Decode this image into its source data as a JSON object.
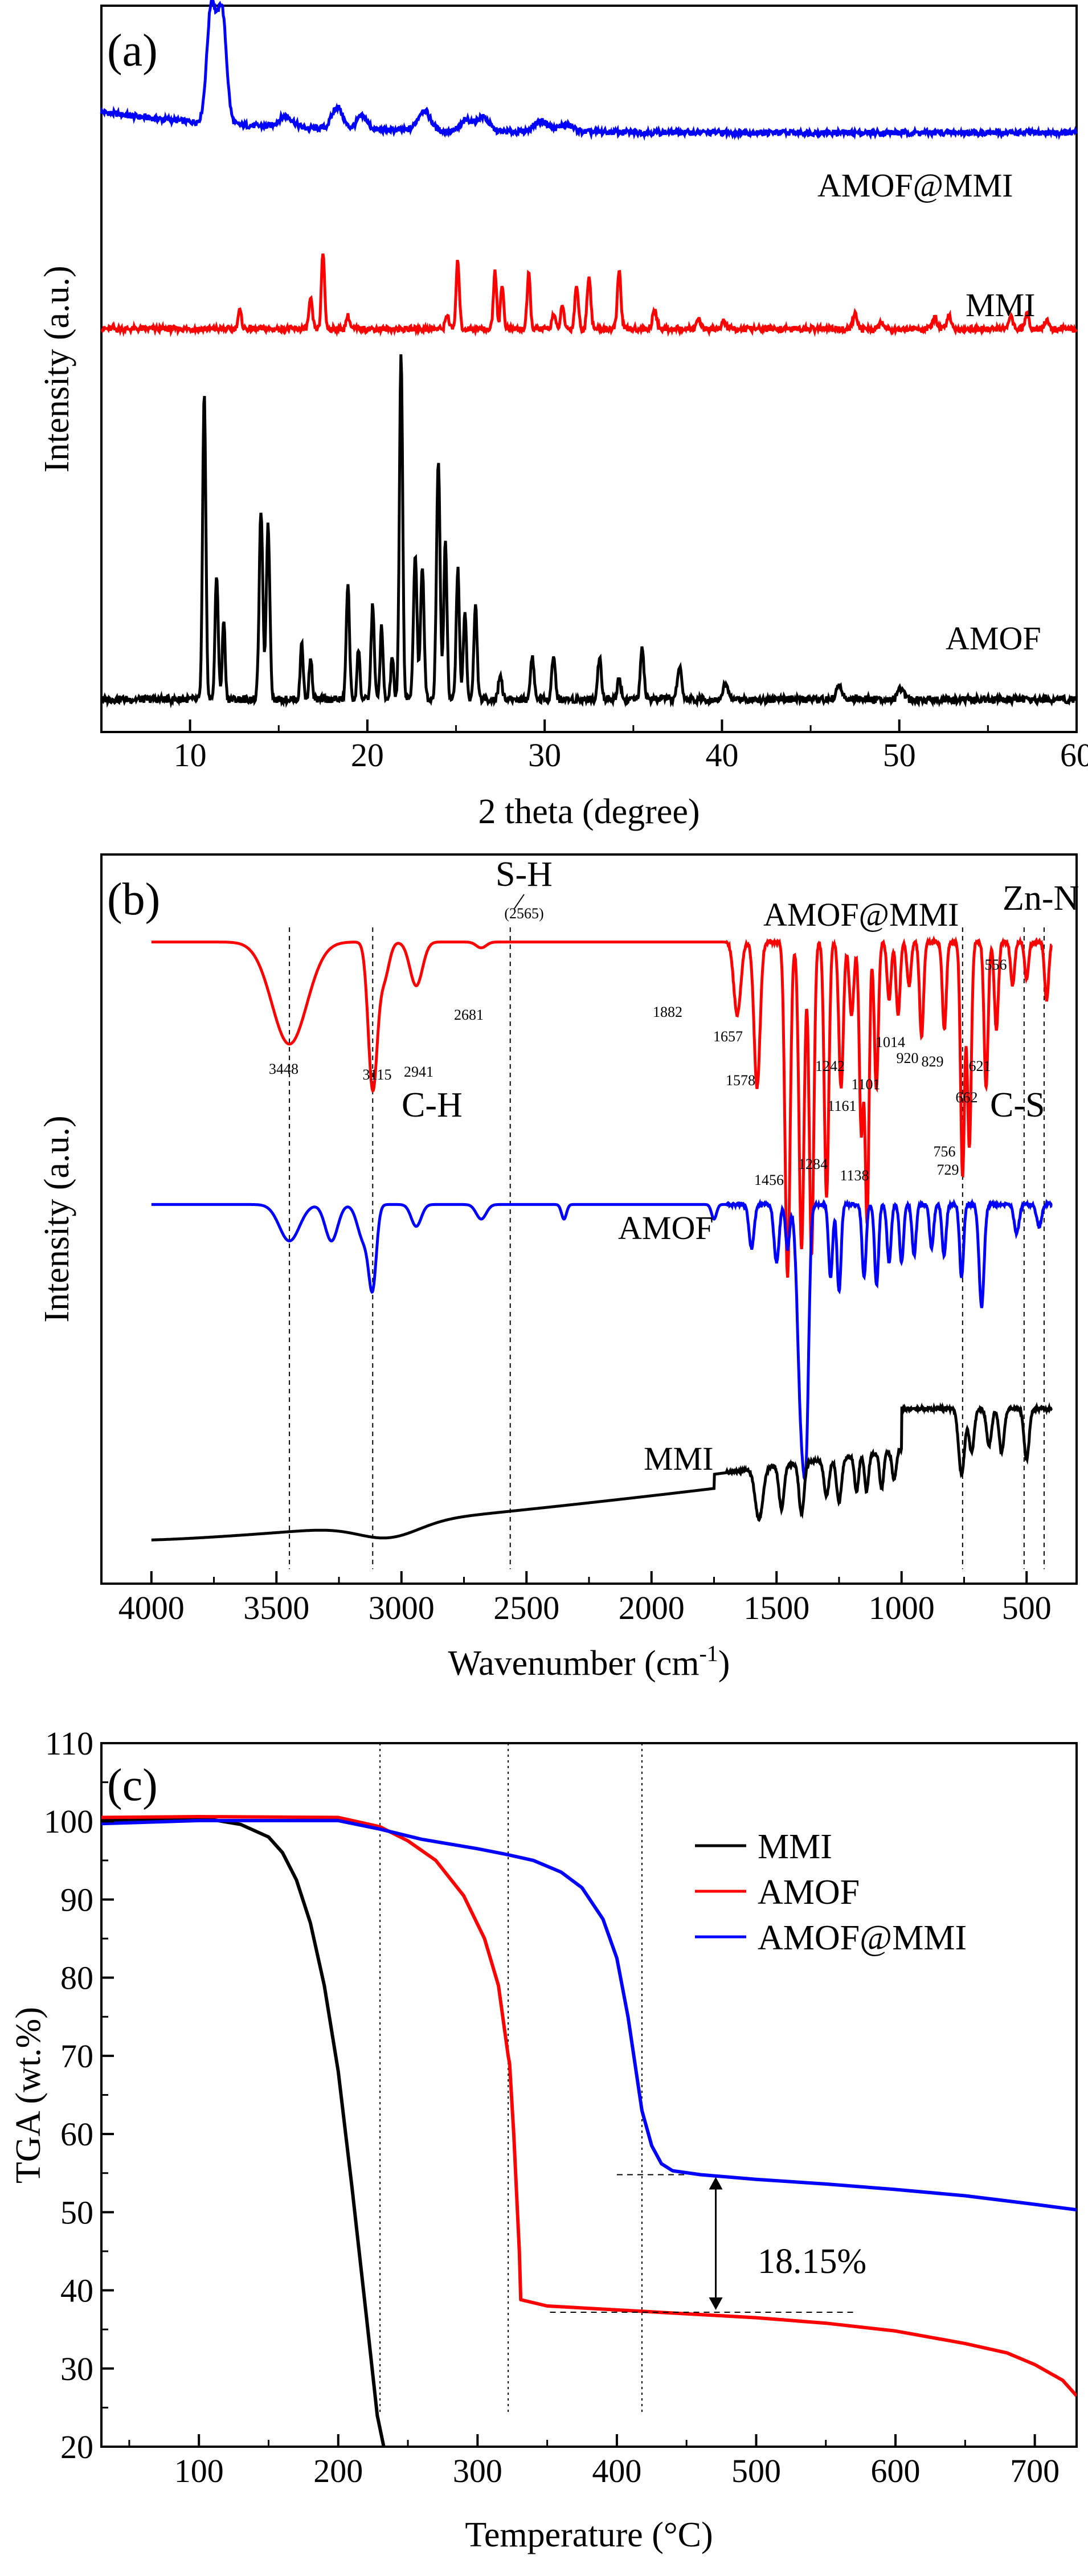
{
  "chart_data": [
    {
      "panel": "(a)",
      "type": "line",
      "xlabel": "2 theta (degree)",
      "ylabel": "Intensity (a.u.)",
      "xlim": [
        5,
        60
      ],
      "xticks": [
        10,
        20,
        30,
        40,
        50,
        60
      ],
      "colors": {
        "AMOF@MMI": "#0000ff",
        "MMI": "#ff0000",
        "AMOF": "#000000"
      },
      "series": [
        {
          "name": "AMOF@MMI",
          "baseline": 0.825,
          "noise": 0.004,
          "peaks": [
            [
              11.2,
              0.16,
              0.25
            ],
            [
              11.8,
              0.155,
              0.25
            ],
            [
              15.4,
              0.015,
              0.4
            ],
            [
              18.3,
              0.03,
              0.3
            ],
            [
              19.7,
              0.018,
              0.3
            ],
            [
              23.2,
              0.028,
              0.35
            ],
            [
              25.6,
              0.015,
              0.3
            ],
            [
              26.5,
              0.02,
              0.35
            ],
            [
              29.8,
              0.015,
              0.4
            ],
            [
              31.2,
              0.01,
              0.4
            ]
          ]
        },
        {
          "name": "MMI",
          "baseline": 0.555,
          "noise": 0.004,
          "peaks": [
            [
              12.8,
              0.025,
              0.1
            ],
            [
              16.8,
              0.04,
              0.1
            ],
            [
              17.5,
              0.105,
              0.09
            ],
            [
              18.9,
              0.018,
              0.1
            ],
            [
              24.5,
              0.02,
              0.1
            ],
            [
              25.1,
              0.095,
              0.09
            ],
            [
              27.2,
              0.08,
              0.09
            ],
            [
              27.6,
              0.06,
              0.09
            ],
            [
              29.1,
              0.075,
              0.09
            ],
            [
              30.5,
              0.02,
              0.1
            ],
            [
              31.0,
              0.03,
              0.1
            ],
            [
              31.8,
              0.06,
              0.1
            ],
            [
              32.5,
              0.075,
              0.1
            ],
            [
              34.2,
              0.08,
              0.1
            ],
            [
              36.2,
              0.025,
              0.12
            ],
            [
              38.7,
              0.012,
              0.12
            ],
            [
              40.1,
              0.01,
              0.12
            ],
            [
              47.5,
              0.02,
              0.12
            ],
            [
              49.0,
              0.01,
              0.12
            ],
            [
              52.0,
              0.015,
              0.12
            ],
            [
              52.8,
              0.02,
              0.12
            ],
            [
              56.3,
              0.015,
              0.12
            ],
            [
              57.2,
              0.02,
              0.12
            ],
            [
              58.3,
              0.012,
              0.12
            ]
          ]
        },
        {
          "name": "AMOF",
          "baseline": 0.045,
          "noise": 0.005,
          "peaks": [
            [
              10.8,
              0.42,
              0.09
            ],
            [
              11.5,
              0.17,
              0.09
            ],
            [
              11.9,
              0.11,
              0.08
            ],
            [
              14.0,
              0.26,
              0.1
            ],
            [
              14.4,
              0.24,
              0.1
            ],
            [
              16.3,
              0.08,
              0.08
            ],
            [
              16.8,
              0.06,
              0.08
            ],
            [
              18.9,
              0.16,
              0.09
            ],
            [
              19.5,
              0.07,
              0.08
            ],
            [
              20.3,
              0.13,
              0.09
            ],
            [
              20.8,
              0.1,
              0.08
            ],
            [
              21.4,
              0.06,
              0.08
            ],
            [
              21.9,
              0.48,
              0.09
            ],
            [
              22.7,
              0.2,
              0.1
            ],
            [
              23.1,
              0.18,
              0.1
            ],
            [
              24.0,
              0.33,
              0.1
            ],
            [
              24.4,
              0.22,
              0.09
            ],
            [
              25.1,
              0.18,
              0.09
            ],
            [
              25.5,
              0.12,
              0.09
            ],
            [
              26.1,
              0.13,
              0.09
            ],
            [
              27.5,
              0.035,
              0.1
            ],
            [
              29.3,
              0.06,
              0.1
            ],
            [
              30.5,
              0.06,
              0.1
            ],
            [
              33.1,
              0.06,
              0.1
            ],
            [
              34.2,
              0.03,
              0.1
            ],
            [
              35.5,
              0.07,
              0.1
            ],
            [
              37.6,
              0.045,
              0.12
            ],
            [
              40.2,
              0.02,
              0.15
            ],
            [
              46.6,
              0.02,
              0.15
            ],
            [
              50.1,
              0.015,
              0.15
            ]
          ]
        }
      ]
    },
    {
      "panel": "(b)",
      "type": "line",
      "xlabel": "Wavenumber (cm",
      "xlabel_sup": "-1",
      "xlabel_close": ")",
      "ylabel": "Intensity (a.u.)",
      "xlim": [
        4200,
        300
      ],
      "xticks": [
        4000,
        3500,
        3000,
        2500,
        2000,
        1500,
        1000,
        500
      ],
      "colors": {
        "AMOF@MMI": "#ff0000",
        "AMOF": "#0000ff",
        "MMI": "#000000"
      },
      "series": [
        {
          "name": "AMOF@MMI",
          "baseline": 0.88,
          "bands": [
            [
              3448,
              0.14,
              70
            ],
            [
              3115,
              0.2,
              18
            ],
            [
              3070,
              0.05,
              20
            ],
            [
              2941,
              0.06,
              25
            ],
            [
              2681,
              0.008,
              20
            ],
            [
              1657,
              0.1,
              14
            ],
            [
              1578,
              0.2,
              12
            ],
            [
              1456,
              0.46,
              10
            ],
            [
              1400,
              0.42,
              10
            ],
            [
              1360,
              0.43,
              9
            ],
            [
              1300,
              0.35,
              9
            ],
            [
              1242,
              0.2,
              9
            ],
            [
              1200,
              0.1,
              9
            ],
            [
              1161,
              0.26,
              8
            ],
            [
              1138,
              0.38,
              8
            ],
            [
              1101,
              0.2,
              8
            ],
            [
              1050,
              0.08,
              8
            ],
            [
              1014,
              0.1,
              8
            ],
            [
              970,
              0.06,
              8
            ],
            [
              920,
              0.13,
              8
            ],
            [
              829,
              0.12,
              8
            ],
            [
              756,
              0.32,
              8
            ],
            [
              729,
              0.28,
              8
            ],
            [
              662,
              0.2,
              8
            ],
            [
              621,
              0.12,
              8
            ],
            [
              556,
              0.06,
              8
            ],
            [
              500,
              0.05,
              8
            ],
            [
              420,
              0.08,
              8
            ]
          ]
        },
        {
          "name": "AMOF",
          "baseline": 0.52,
          "bands": [
            [
              3448,
              0.05,
              40
            ],
            [
              3280,
              0.05,
              25
            ],
            [
              3150,
              0.05,
              25
            ],
            [
              3115,
              0.1,
              15
            ],
            [
              2941,
              0.03,
              20
            ],
            [
              2681,
              0.02,
              20
            ],
            [
              2350,
              0.02,
              10
            ],
            [
              1750,
              0.02,
              10
            ],
            [
              1600,
              0.06,
              10
            ],
            [
              1500,
              0.08,
              10
            ],
            [
              1456,
              0.06,
              8
            ],
            [
              1400,
              0.3,
              15
            ],
            [
              1380,
              0.22,
              10
            ],
            [
              1284,
              0.1,
              8
            ],
            [
              1250,
              0.12,
              8
            ],
            [
              1150,
              0.1,
              8
            ],
            [
              1100,
              0.11,
              8
            ],
            [
              1050,
              0.08,
              8
            ],
            [
              1000,
              0.08,
              8
            ],
            [
              950,
              0.07,
              8
            ],
            [
              880,
              0.06,
              8
            ],
            [
              830,
              0.07,
              8
            ],
            [
              760,
              0.1,
              8
            ],
            [
              680,
              0.14,
              10
            ],
            [
              540,
              0.04,
              10
            ],
            [
              450,
              0.03,
              10
            ]
          ]
        },
        {
          "name": "MMI",
          "baseline": 0.06,
          "bands": [
            [
              3050,
              0.02,
              120
            ],
            [
              1570,
              0.07,
              15
            ],
            [
              1480,
              0.06,
              10
            ],
            [
              1400,
              0.07,
              10
            ],
            [
              1300,
              0.05,
              10
            ],
            [
              1250,
              0.06,
              10
            ],
            [
              1180,
              0.05,
              8
            ],
            [
              1140,
              0.05,
              8
            ],
            [
              1080,
              0.05,
              8
            ],
            [
              1030,
              0.04,
              8
            ],
            [
              760,
              0.09,
              12
            ],
            [
              720,
              0.06,
              10
            ],
            [
              650,
              0.05,
              10
            ],
            [
              600,
              0.06,
              10
            ],
            [
              500,
              0.07,
              10
            ]
          ]
        }
      ],
      "guides": [
        3448,
        3115,
        2565,
        756,
        510,
        430
      ],
      "peak_labels": [
        {
          "text": "3448"
        },
        {
          "text": "3115"
        },
        {
          "text": "2941"
        },
        {
          "text": "2681"
        },
        {
          "text": "(2565)"
        },
        {
          "text": "1882"
        },
        {
          "text": "1657"
        },
        {
          "text": "1578"
        },
        {
          "text": "1456"
        },
        {
          "text": "1284"
        },
        {
          "text": "1242"
        },
        {
          "text": "1161"
        },
        {
          "text": "1138"
        },
        {
          "text": "1101"
        },
        {
          "text": "1014"
        },
        {
          "text": "920"
        },
        {
          "text": "829"
        },
        {
          "text": "756"
        },
        {
          "text": "729"
        },
        {
          "text": "662"
        },
        {
          "text": "621"
        },
        {
          "text": "556"
        }
      ],
      "annotations": [
        "S-H",
        "C-H",
        "Zn-N",
        "C-S"
      ]
    },
    {
      "panel": "(c)",
      "type": "line",
      "xlabel": "Temperature (°C)",
      "ylabel": "TGA (wt.%)",
      "xlim": [
        30,
        730
      ],
      "ylim": [
        20,
        110
      ],
      "xticks": [
        100,
        200,
        300,
        400,
        500,
        600,
        700
      ],
      "yticks": [
        20,
        30,
        40,
        50,
        60,
        70,
        80,
        90,
        100,
        110
      ],
      "legend": "top-right",
      "guides": [
        230,
        322,
        418
      ],
      "step_annotation": "18.15%",
      "step_from": 37.2,
      "step_to": 54.8,
      "series": [
        {
          "name": "MMI",
          "color": "#000000",
          "x": [
            30,
            80,
            110,
            130,
            150,
            160,
            170,
            180,
            190,
            200,
            210,
            220,
            228,
            235
          ],
          "y": [
            100.1,
            100.3,
            100.2,
            99.6,
            98.0,
            96.0,
            92.5,
            87.0,
            79.0,
            68.0,
            53.0,
            37.0,
            24.0,
            18.0
          ]
        },
        {
          "name": "AMOF",
          "color": "#ff0000",
          "x": [
            30,
            100,
            200,
            230,
            250,
            270,
            290,
            305,
            315,
            322,
            323,
            326,
            330,
            331,
            350,
            400,
            450,
            500,
            550,
            600,
            650,
            680,
            700,
            720,
            730
          ],
          "y": [
            100.5,
            100.6,
            100.5,
            99.3,
            97.5,
            95.0,
            90.5,
            85.0,
            79.0,
            70.0,
            69.0,
            60.0,
            45.0,
            38.8,
            38.0,
            37.5,
            37.0,
            36.5,
            35.8,
            34.8,
            33.2,
            32.0,
            30.5,
            28.5,
            26.5
          ]
        },
        {
          "name": "AMOF@MMI",
          "color": "#0000ff",
          "x": [
            30,
            100,
            200,
            230,
            260,
            300,
            320,
            340,
            360,
            375,
            390,
            400,
            408,
            413,
            418,
            425,
            432,
            440,
            460,
            500,
            550,
            600,
            650,
            700,
            730
          ],
          "y": [
            99.7,
            100.1,
            100.1,
            99.0,
            97.7,
            96.5,
            95.8,
            95.0,
            93.5,
            91.5,
            87.5,
            82.5,
            75.0,
            69.0,
            63.0,
            58.5,
            56.2,
            55.3,
            54.8,
            54.2,
            53.6,
            52.9,
            52.1,
            51.0,
            50.3
          ]
        }
      ]
    }
  ]
}
